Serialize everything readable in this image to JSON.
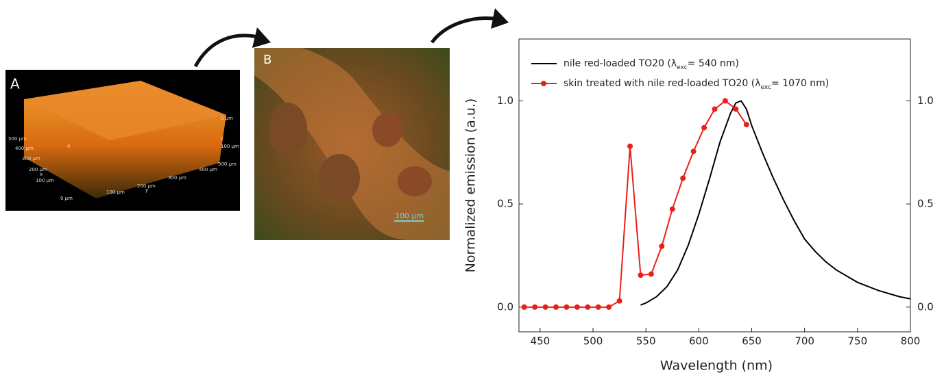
{
  "panel_a": {
    "label": "A",
    "axis_labels": [
      "500 µm",
      "400 µm",
      "300 µm",
      "200 µm",
      "100 µm",
      "0 µm",
      "100 µm",
      "200 µm",
      "300 µm",
      "400 µm",
      "0 µm",
      "100 µm",
      "500 µm",
      "x",
      "y",
      "z",
      "0"
    ]
  },
  "panel_b": {
    "label": "B",
    "scale_bar": "100 µm"
  },
  "chart_data": {
    "type": "line",
    "xlabel": "Wavelength (nm)",
    "ylabel": "Normalized emission (a.u.)",
    "xlim": [
      430,
      800
    ],
    "ylim": [
      -0.12,
      1.3
    ],
    "y2lim": [
      -0.12,
      1.3
    ],
    "xticks": [
      450,
      500,
      550,
      600,
      650,
      700,
      750,
      800
    ],
    "yticks": [
      {
        "value": 0,
        "label": "0.0"
      },
      {
        "value": 0.5,
        "label": "0.5"
      },
      {
        "value": 1,
        "label": "1.0"
      }
    ],
    "y2ticks": [
      {
        "value": 0,
        "label": "0.0"
      },
      {
        "value": 0.5,
        "label": "0.5"
      },
      {
        "value": 1,
        "label": "1.0"
      }
    ],
    "series": [
      {
        "name": [
          "nile red-loaded TO20 (λ",
          "exc",
          "= 540 nm)"
        ],
        "color": "#000000",
        "markers": false,
        "x": [
          545,
          550,
          560,
          570,
          580,
          590,
          600,
          610,
          620,
          630,
          635,
          640,
          645,
          650,
          660,
          670,
          680,
          690,
          700,
          710,
          720,
          730,
          740,
          750,
          760,
          770,
          780,
          790,
          800
        ],
        "values": [
          0.01,
          0.02,
          0.05,
          0.1,
          0.18,
          0.3,
          0.45,
          0.62,
          0.8,
          0.94,
          0.99,
          1.0,
          0.96,
          0.88,
          0.75,
          0.63,
          0.52,
          0.42,
          0.33,
          0.27,
          0.22,
          0.18,
          0.15,
          0.12,
          0.1,
          0.08,
          0.065,
          0.05,
          0.04
        ]
      },
      {
        "name": [
          "skin treated with nile red-loaded TO20 (λ",
          "exc",
          "= 1070 nm)"
        ],
        "color": "#e8201c",
        "markers": true,
        "x": [
          435,
          445,
          455,
          465,
          475,
          485,
          495,
          505,
          515,
          525,
          535,
          545,
          555,
          565,
          575,
          585,
          595,
          605,
          615,
          625,
          635,
          645
        ],
        "values": [
          0,
          0,
          0,
          0,
          0,
          0,
          0,
          0,
          0,
          0.03,
          0.78,
          0.155,
          0.16,
          0.295,
          0.475,
          0.625,
          0.755,
          0.87,
          0.96,
          1.0,
          0.96,
          0.885
        ]
      }
    ]
  }
}
